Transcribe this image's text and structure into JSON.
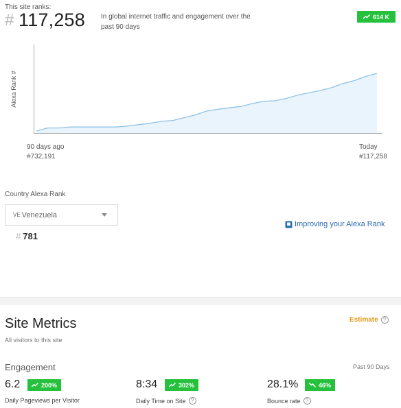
{
  "rank": {
    "label": "This site ranks:",
    "hash": "#",
    "value": "117,258",
    "description": "In global internet traffic and engagement over the past 90 days",
    "change_badge": "614 K"
  },
  "chart_data": {
    "type": "area",
    "ylabel": "Alexa Rank #",
    "start_label": "90 days ago",
    "start_value": "#732,191",
    "end_label": "Today",
    "end_value": "#117,258",
    "y_inverted": true,
    "ylim": [
      732191,
      117258
    ],
    "x": [
      0,
      3,
      6,
      9,
      12,
      15,
      18,
      21,
      24,
      27,
      30,
      33,
      36,
      39,
      42,
      45,
      48,
      51,
      54,
      57,
      60,
      63,
      66,
      69,
      72,
      75,
      78,
      81,
      84,
      87,
      90
    ],
    "values": [
      732191,
      700000,
      700000,
      690000,
      690000,
      690000,
      690000,
      690000,
      680000,
      665000,
      650000,
      630000,
      620000,
      590000,
      560000,
      520000,
      500000,
      485000,
      470000,
      440000,
      415000,
      410000,
      385000,
      350000,
      325000,
      300000,
      270000,
      225000,
      195000,
      150000,
      117258
    ],
    "colors": {
      "line": "#8fc2e6",
      "fill": "#eaf4fc"
    }
  },
  "country": {
    "label": "Country Alexa Rank",
    "code": "VE",
    "name": "Venezuela",
    "hash": "#",
    "rank": "781"
  },
  "improve_link": "Improving your Alexa Rank",
  "metrics": {
    "title": "Site Metrics",
    "subtitle": "All visitors to this site",
    "estimate": "Estimate",
    "engagement_label": "Engagement",
    "period": "Past 90 Days",
    "items": [
      {
        "value": "6.2",
        "badge": "200%",
        "label": "Daily Pageviews per Visitor",
        "trend": "up"
      },
      {
        "value": "8:34",
        "badge": "302%",
        "label": "Daily Time on Site",
        "trend": "up"
      },
      {
        "value": "28.1%",
        "badge": "46%",
        "label": "Bounce rate",
        "trend": "down"
      }
    ]
  },
  "colors": {
    "badge_green": "#25c13c",
    "link_blue": "#2b6ab1",
    "estimate_orange": "#e3991c"
  }
}
